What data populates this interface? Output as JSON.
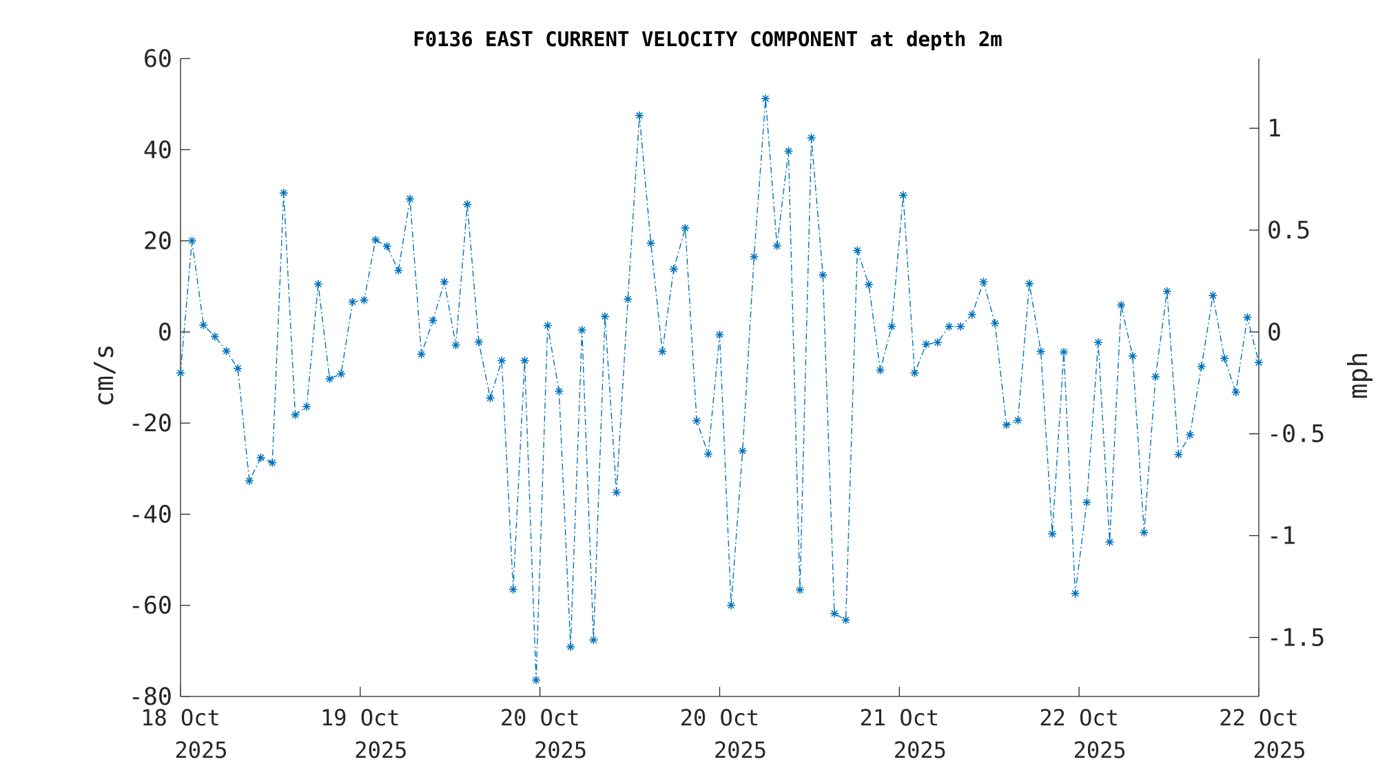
{
  "chart_data": {
    "type": "line",
    "title": "F0136 EAST CURRENT VELOCITY COMPONENT at depth 2m",
    "ylabel": "cm/s",
    "y2label": "mph",
    "ylim": [
      -80,
      60
    ],
    "y2lim": [
      -1.7895,
      1.3422
    ],
    "yticks": [
      60,
      40,
      20,
      0,
      -20,
      -40,
      -60,
      -80
    ],
    "yticklabels": [
      "60",
      "40",
      "20",
      "0",
      "-20",
      "-40",
      "-60",
      "-80"
    ],
    "y2ticks": [
      1,
      0.5,
      0,
      -0.5,
      -1,
      -1.5
    ],
    "y2ticklabels": [
      "1",
      "0.5",
      "0",
      "-0.5",
      "-1",
      "-1.5"
    ],
    "xticks": [
      {
        "line1": "18 Oct",
        "line2": "2025"
      },
      {
        "line1": "19 Oct",
        "line2": "2025"
      },
      {
        "line1": "20 Oct",
        "line2": "2025"
      },
      {
        "line1": "20 Oct",
        "line2": "2025"
      },
      {
        "line1": "21 Oct",
        "line2": "2025"
      },
      {
        "line1": "22 Oct",
        "line2": "2025"
      },
      {
        "line1": "22 Oct",
        "line2": "2025"
      }
    ],
    "grid": false,
    "marker": "asterisk",
    "line_style": "dash-dot",
    "color": "#0072BD",
    "series": [
      {
        "values": [
          -9,
          20,
          1.5,
          -1,
          -4.2,
          -8,
          -32.7,
          -27.6,
          -28.7,
          30.5,
          -18.2,
          -16.4,
          10.5,
          -10.3,
          -9.2,
          6.6,
          7,
          20.2,
          18.8,
          13.5,
          29.2,
          -4.9,
          2.5,
          11,
          -2.9,
          28,
          -2.2,
          -14.5,
          -6.3,
          -56.5,
          -6.3,
          -76.4,
          1.4,
          -13,
          -69.1,
          0.4,
          -67.6,
          3.4,
          -35.2,
          7.2,
          47.5,
          19.5,
          -4.3,
          13.8,
          22.8,
          -19.5,
          -26.8,
          -0.6,
          -60,
          -26.1,
          16.5,
          51.2,
          18.9,
          39.7,
          -56.6,
          42.6,
          12.5,
          -61.8,
          -63.2,
          17.9,
          10.4,
          -8.4,
          1.2,
          30,
          -9,
          -2.7,
          -2.3,
          1.2,
          1.2,
          3.8,
          11,
          1.9,
          -20.4,
          -19.4,
          10.6,
          -4.3,
          -44.3,
          -4.4,
          -57.4,
          -37.4,
          -2.3,
          -46.1,
          5.9,
          -5.3,
          -44,
          -9.8,
          8.9,
          -26.9,
          -22.6,
          -7.6,
          8,
          -5.8,
          -13.2,
          3.2,
          -6.7
        ]
      }
    ]
  }
}
